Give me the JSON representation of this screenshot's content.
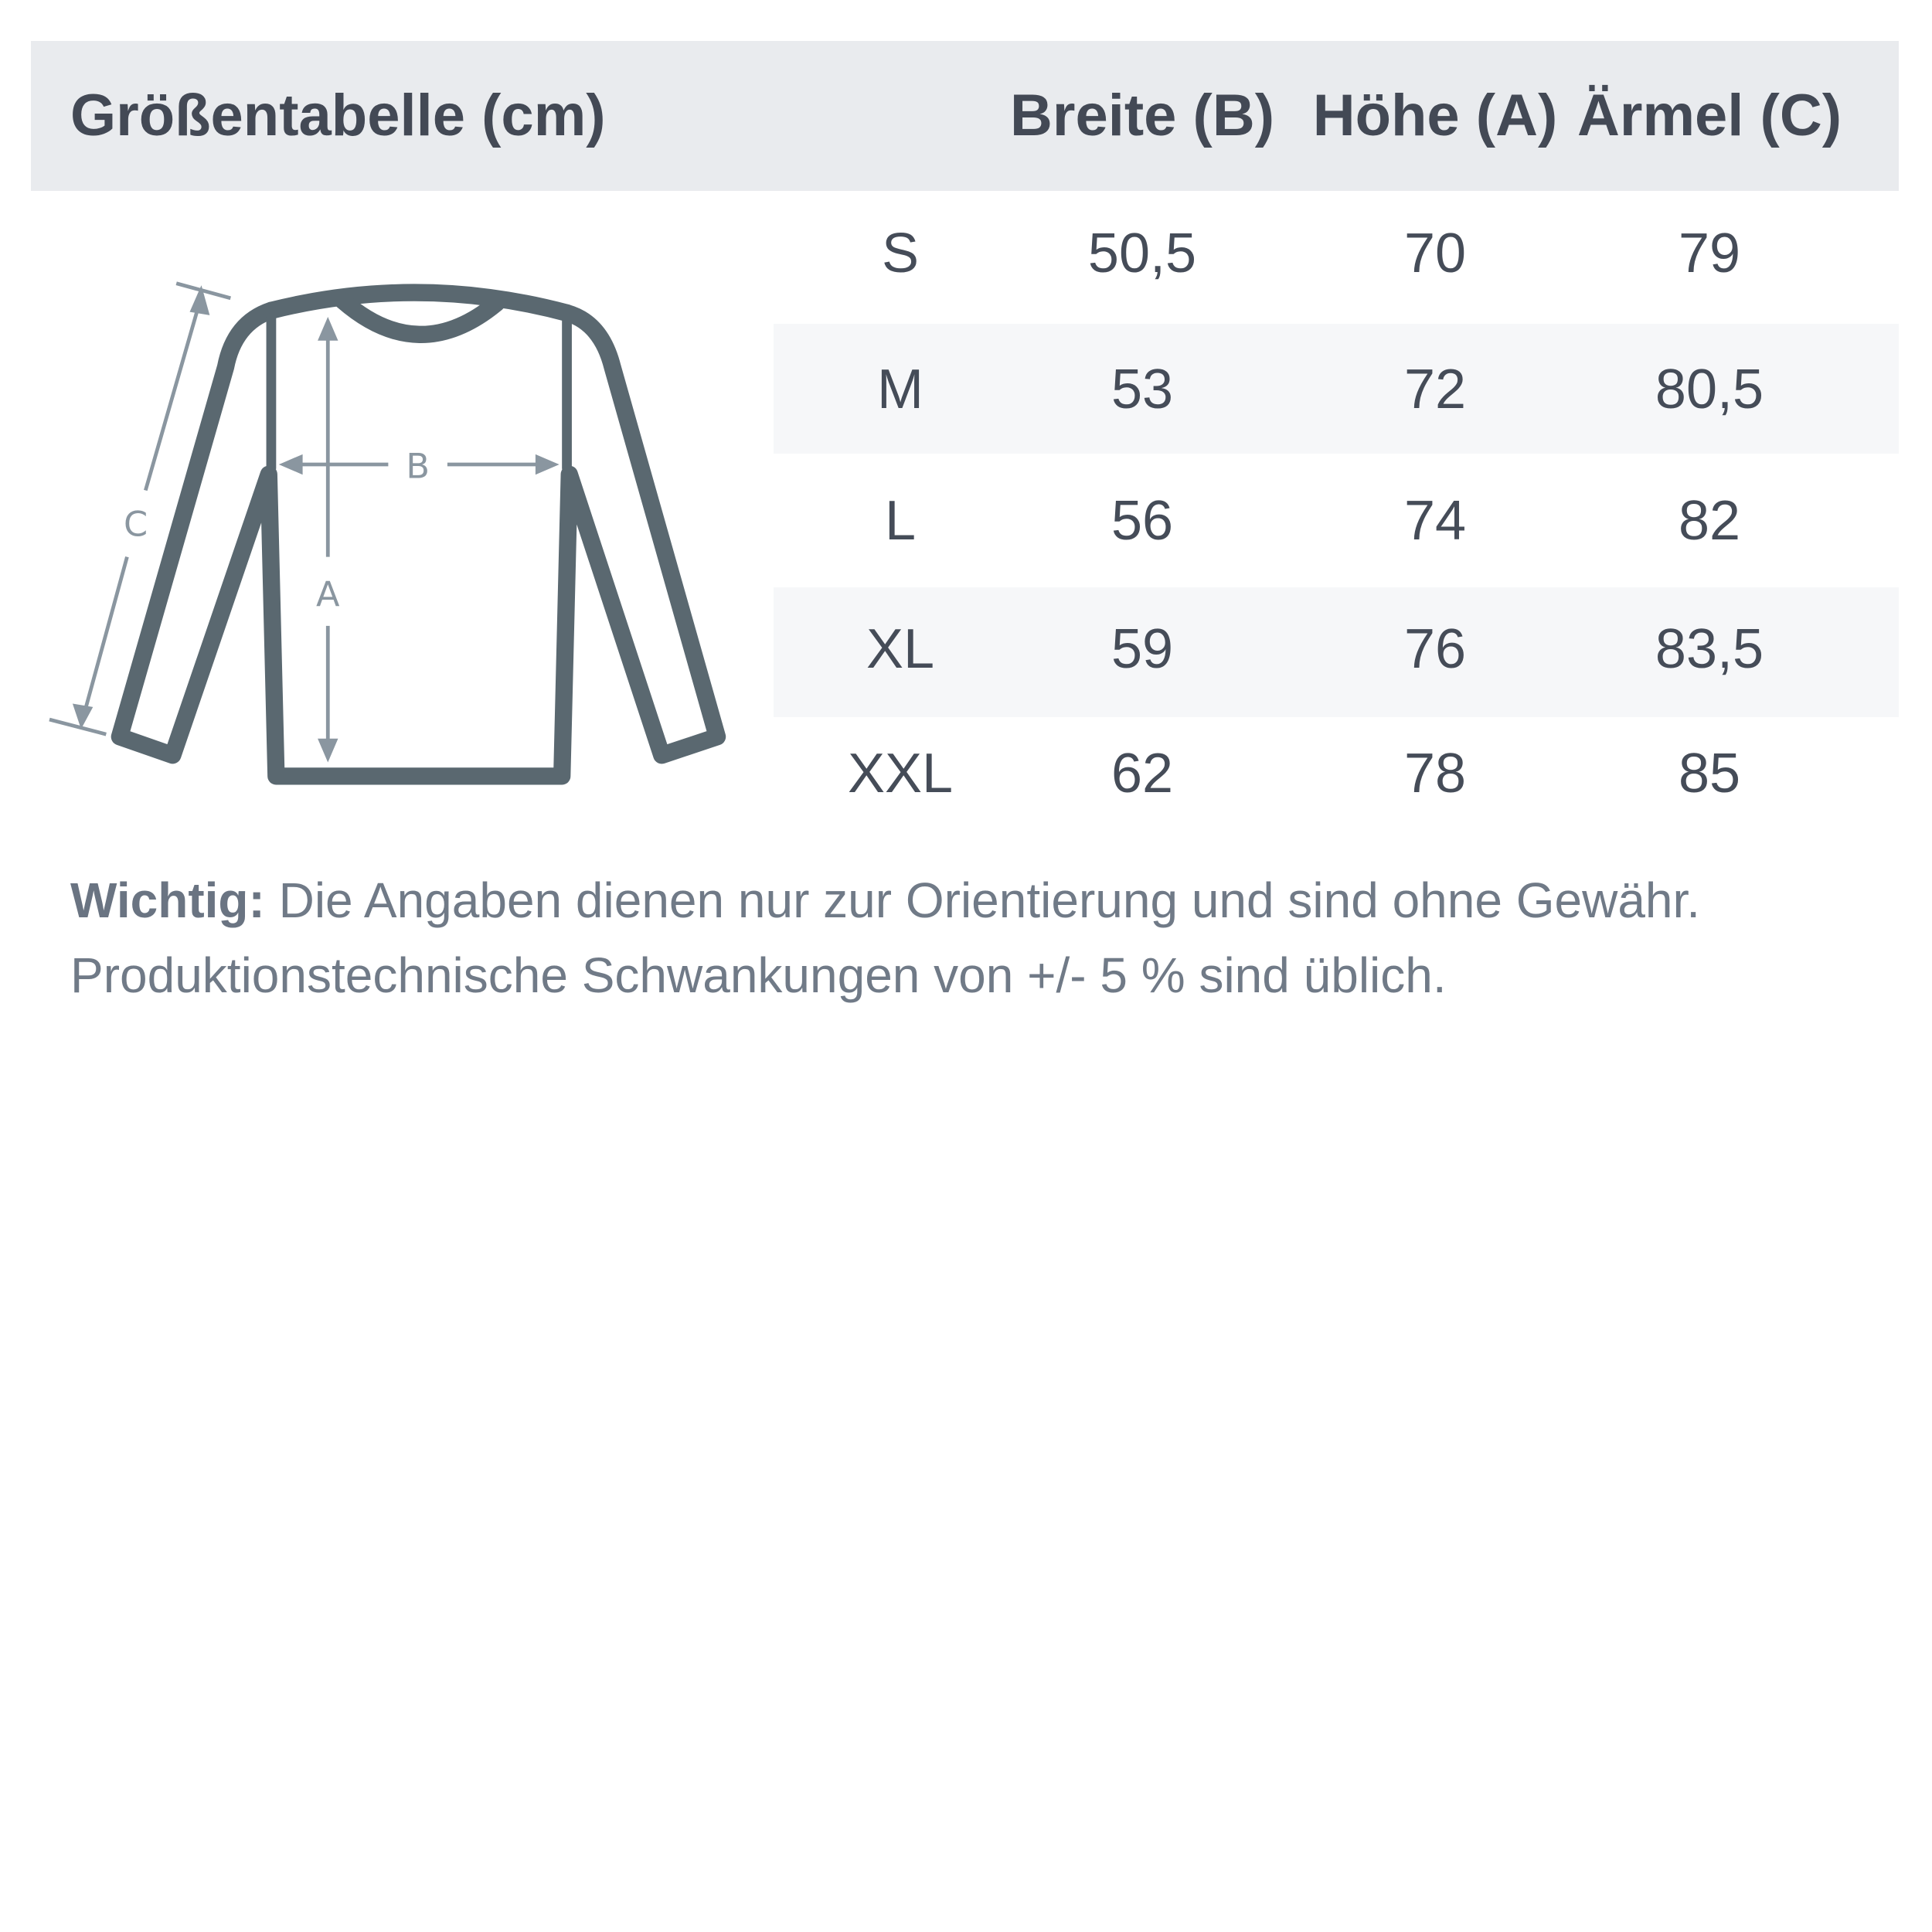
{
  "header": {
    "title": "Größentabelle (cm)",
    "columns": [
      "Breite (B)",
      "Höhe (A)",
      "Ärmel (C)"
    ]
  },
  "rows": [
    {
      "size": "S",
      "breite": "50,5",
      "hoehe": "70",
      "aermel": "79"
    },
    {
      "size": "M",
      "breite": "53",
      "hoehe": "72",
      "aermel": "80,5"
    },
    {
      "size": "L",
      "breite": "56",
      "hoehe": "74",
      "aermel": "82"
    },
    {
      "size": "XL",
      "breite": "59",
      "hoehe": "76",
      "aermel": "83,5"
    },
    {
      "size": "XXL",
      "breite": "62",
      "hoehe": "78",
      "aermel": "85"
    }
  ],
  "diagram": {
    "label_a": "A",
    "label_b": "B",
    "label_c": "C"
  },
  "note": {
    "bold": "Wichtig:",
    "line1": "Die Angaben dienen nur zur Orientierung und sind ohne Gewähr.",
    "line2": "Produktionstechnische Schwankungen von +/- 5 % sind üblich."
  },
  "colors": {
    "header_bg": "#e9ebee",
    "stripe": "#f6f7f9",
    "outline": "#5a6870",
    "arrows": "#8a96a0"
  }
}
